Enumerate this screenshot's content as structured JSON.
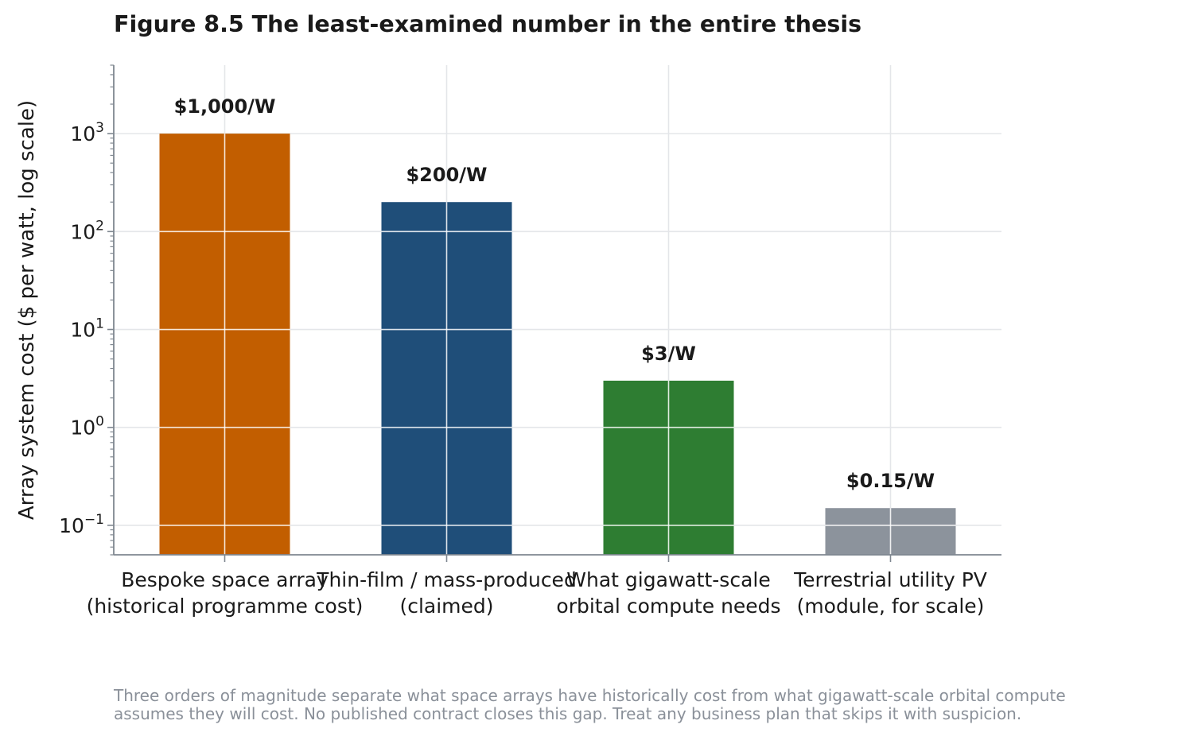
{
  "chart_data": {
    "type": "bar",
    "title": "Figure 8.5  The least-examined number in the entire thesis",
    "ylabel": "Array system cost ($ per watt, log scale)",
    "xlabel": "",
    "yscale": "log",
    "ylim": [
      0.05,
      5000
    ],
    "grid": true,
    "categories": [
      [
        "Bespoke space array",
        "(historical programme cost)"
      ],
      [
        "Thin-film / mass-produced",
        "(claimed)"
      ],
      [
        "What gigawatt-scale",
        "orbital compute needs"
      ],
      [
        "Terrestrial utility PV",
        "(module, for scale)"
      ]
    ],
    "values": [
      1000,
      200,
      3,
      0.15
    ],
    "value_labels": [
      "$1,000/W",
      "$200/W",
      "$3/W",
      "$0.15/W"
    ],
    "colors": [
      "#c25e00",
      "#1f4e79",
      "#2e7d32",
      "#8c939c"
    ],
    "yticks": [
      {
        "value": 0.1,
        "base": "10",
        "exp": "−1"
      },
      {
        "value": 1,
        "base": "10",
        "exp": "0"
      },
      {
        "value": 10,
        "base": "10",
        "exp": "1"
      },
      {
        "value": 100,
        "base": "10",
        "exp": "2"
      },
      {
        "value": 1000,
        "base": "10",
        "exp": "3"
      }
    ]
  },
  "caption": [
    "Three orders of magnitude separate what space arrays have historically cost from what gigawatt-scale orbital compute",
    "assumes they will cost. No published contract closes this gap. Treat any business plan that skips it with suspicion."
  ]
}
